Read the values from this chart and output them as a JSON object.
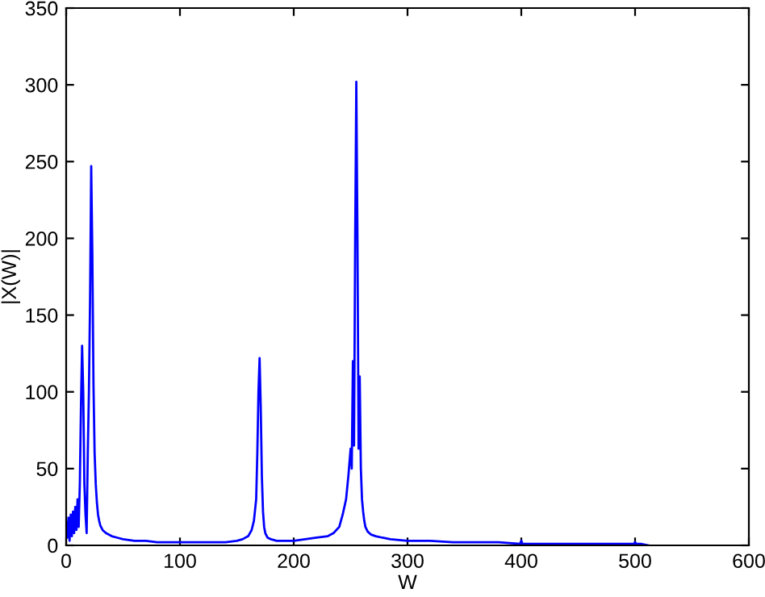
{
  "chart_data": {
    "type": "line",
    "xlabel": "W",
    "ylabel": "|X(W)|",
    "xlim": [
      0,
      600
    ],
    "ylim": [
      0,
      350
    ],
    "xticks": [
      0,
      100,
      200,
      300,
      400,
      500,
      600
    ],
    "yticks": [
      0,
      50,
      100,
      150,
      200,
      250,
      300,
      350
    ],
    "grid": false,
    "legend": false,
    "marker": "none",
    "line_style": "solid",
    "series": [
      {
        "color": "#0000ff",
        "x": [
          0,
          1,
          2,
          3,
          4,
          5,
          6,
          7,
          8,
          9,
          10,
          11,
          12,
          13,
          14,
          15,
          16,
          17,
          18,
          19,
          20,
          21,
          22,
          23,
          24,
          25,
          26,
          27,
          28,
          29,
          30,
          32,
          35,
          40,
          45,
          50,
          60,
          70,
          80,
          100,
          120,
          140,
          150,
          155,
          160,
          163,
          165,
          167,
          168,
          169,
          170,
          171,
          172,
          173,
          174,
          175,
          177,
          180,
          185,
          190,
          200,
          210,
          220,
          230,
          235,
          240,
          243,
          246,
          248,
          250,
          251,
          252,
          253,
          254,
          255,
          256,
          257,
          258,
          259,
          260,
          261,
          262,
          263,
          265,
          268,
          272,
          278,
          285,
          300,
          320,
          340,
          360,
          380,
          399,
          400,
          401,
          420,
          450,
          480,
          499,
          500,
          501,
          505,
          512
        ],
        "values": [
          15,
          5,
          18,
          3,
          20,
          6,
          22,
          8,
          25,
          10,
          30,
          12,
          40,
          90,
          130,
          100,
          40,
          20,
          8,
          60,
          100,
          160,
          247,
          190,
          105,
          60,
          40,
          28,
          20,
          16,
          13,
          10,
          8,
          6,
          5,
          4,
          3,
          3,
          2,
          2,
          2,
          2,
          3,
          4,
          6,
          10,
          16,
          30,
          60,
          100,
          122,
          90,
          45,
          22,
          12,
          8,
          5,
          4,
          3,
          3,
          3,
          4,
          5,
          6,
          8,
          12,
          20,
          30,
          45,
          63,
          50,
          120,
          65,
          200,
          302,
          200,
          63,
          110,
          50,
          30,
          22,
          16,
          12,
          9,
          7,
          6,
          5,
          4,
          3,
          3,
          2,
          2,
          2,
          1,
          3,
          1,
          1,
          1,
          1,
          1,
          2,
          1,
          1,
          0
        ]
      }
    ]
  }
}
